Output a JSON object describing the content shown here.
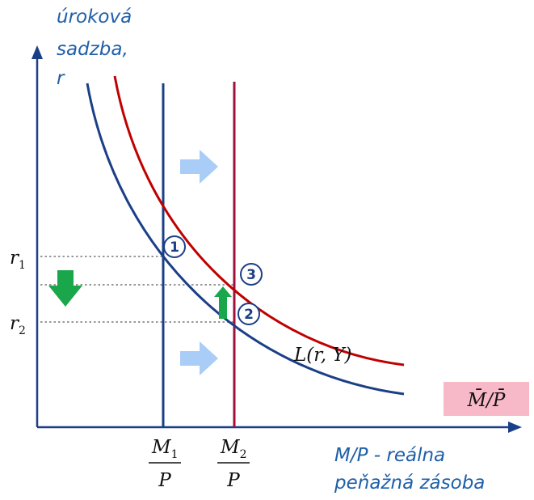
{
  "y_axis_title": [
    "úroková",
    "sadzba,",
    "r"
  ],
  "x_axis_title": [
    "M/P - reálna",
    "peňažná zásoba"
  ],
  "rate_labels": [
    {
      "base": "r",
      "sub": "1"
    },
    {
      "base": "r",
      "sub": "2"
    }
  ],
  "supply_labels": [
    {
      "num": "M",
      "sub": "1",
      "den": "P"
    },
    {
      "num": "M",
      "sub": "2",
      "den": "P"
    }
  ],
  "curve_label": "L(r, Y)",
  "supply_box_label": "M̄/P̄",
  "equilibrium_points": [
    "1",
    "2",
    "3"
  ],
  "colors": {
    "axis": "#1b3f87",
    "demand_curve_initial": "#1b3f87",
    "demand_curve_shifted": "#c00000",
    "supply_line_initial": "#1b3f87",
    "supply_line_shifted": "#a0103a",
    "shift_arrow": "#a9cdf7",
    "rate_arrow": "#1aa64a",
    "supply_box": "#f7b8c8"
  },
  "icons": {
    "shift_arrows": "right-arrow-icon",
    "rate_down": "down-arrow-icon",
    "rate_up": "up-arrow-icon"
  }
}
